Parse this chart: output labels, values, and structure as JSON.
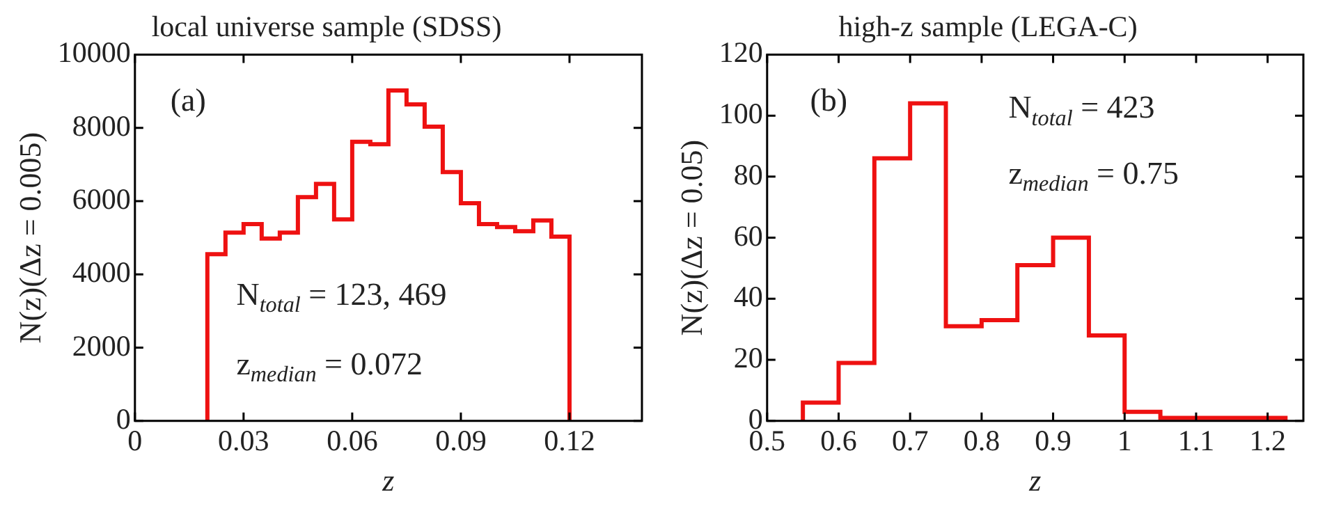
{
  "chart_data": [
    {
      "type": "histogram",
      "title": "local universe sample (SDSS)",
      "xlabel": "z",
      "ylabel": "N(z)(Δz = 0.005)",
      "bins": [
        0.02,
        0.025,
        0.03,
        0.035,
        0.04,
        0.045,
        0.05,
        0.055,
        0.06,
        0.065,
        0.07,
        0.075,
        0.08,
        0.085,
        0.09,
        0.095,
        0.1,
        0.105,
        0.11,
        0.115,
        0.12
      ],
      "values": [
        4550,
        5140,
        5370,
        4980,
        5140,
        6110,
        6470,
        5500,
        7620,
        7550,
        9020,
        8640,
        8030,
        6790,
        5940,
        5370,
        5290,
        5180,
        5470,
        5030
      ],
      "color": "#ee1111",
      "xlim": [
        0,
        0.14
      ],
      "xticks": [
        0,
        0.03,
        0.06,
        0.09,
        0.12
      ],
      "ylim": [
        0,
        10000
      ],
      "yticks": [
        0,
        2000,
        4000,
        6000,
        8000,
        10000
      ],
      "grid": false,
      "annotations": [
        "(a)",
        "N$_{total}$ = 123, 469",
        "z$_{median}$ = 0.072"
      ]
    },
    {
      "type": "histogram",
      "title": "high-z sample (LEGA-C)",
      "xlabel": "z",
      "ylabel": "N(z)(Δz = 0.05)",
      "bins": [
        0.55,
        0.6,
        0.65,
        0.7,
        0.75,
        0.8,
        0.85,
        0.9,
        0.95,
        1.0,
        1.05,
        1.1,
        1.15,
        1.2,
        1.225
      ],
      "values": [
        6,
        19,
        86,
        104,
        31,
        33,
        51,
        60,
        28,
        3,
        1,
        1,
        1,
        1
      ],
      "color": "#ee1111",
      "xlim": [
        0.5,
        1.25
      ],
      "xticks": [
        0.5,
        0.6,
        0.7,
        0.8,
        0.9,
        1,
        1.1,
        1.2
      ],
      "ylim": [
        0,
        120
      ],
      "yticks": [
        0,
        20,
        40,
        60,
        80,
        100,
        120
      ],
      "grid": false,
      "annotations": [
        "(b)",
        "N$_{total}$ = 423",
        "z$_{median}$ = 0.75"
      ]
    }
  ]
}
